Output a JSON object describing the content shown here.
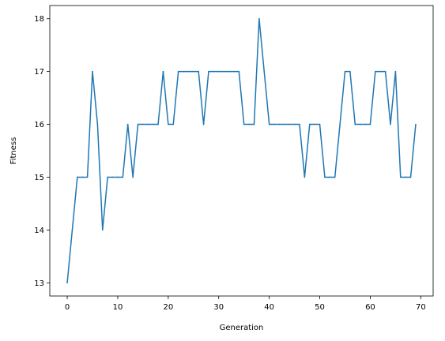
{
  "chart_data": {
    "type": "line",
    "xlabel": "Generation",
    "ylabel": "Fitness",
    "xlim": [
      -3.45,
      72.45
    ],
    "ylim": [
      12.75,
      18.25
    ],
    "xticks": [
      0,
      10,
      20,
      30,
      40,
      50,
      60,
      70
    ],
    "yticks": [
      13,
      14,
      15,
      16,
      17,
      18
    ],
    "grid": false,
    "series": [
      {
        "color": "#1f77b4",
        "x": [
          0,
          1,
          2,
          3,
          4,
          5,
          6,
          7,
          8,
          9,
          10,
          11,
          12,
          13,
          14,
          15,
          16,
          17,
          18,
          19,
          20,
          21,
          22,
          23,
          24,
          25,
          26,
          27,
          28,
          29,
          30,
          31,
          32,
          33,
          34,
          35,
          36,
          37,
          38,
          39,
          40,
          41,
          42,
          43,
          44,
          45,
          46,
          47,
          48,
          49,
          50,
          51,
          52,
          53,
          54,
          55,
          56,
          57,
          58,
          59,
          60,
          61,
          62,
          63,
          64,
          65,
          66,
          67,
          68,
          69
        ],
        "values": [
          13,
          14,
          15,
          15,
          15,
          17,
          16,
          14,
          15,
          15,
          15,
          15,
          16,
          15,
          16,
          16,
          16,
          16,
          16,
          17,
          16,
          16,
          17,
          17,
          17,
          17,
          17,
          16,
          17,
          17,
          17,
          17,
          17,
          17,
          17,
          16,
          16,
          16,
          18,
          17,
          16,
          16,
          16,
          16,
          16,
          16,
          16,
          15,
          16,
          16,
          16,
          15,
          15,
          15,
          16,
          17,
          17,
          16,
          16,
          16,
          16,
          17,
          17,
          17,
          16,
          17,
          15,
          15,
          15,
          16
        ]
      }
    ]
  }
}
